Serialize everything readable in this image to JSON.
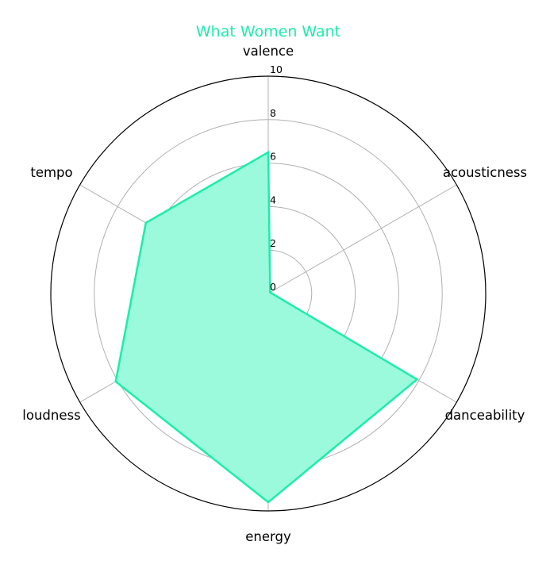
{
  "chart_data": {
    "type": "radar",
    "title": "What Women Want",
    "categories": [
      "valence",
      "acousticness",
      "danceability",
      "energy",
      "loudness",
      "tempo"
    ],
    "series": [
      {
        "values": [
          6.5,
          0.1,
          7.9,
          9.6,
          8.1,
          6.5
        ]
      }
    ],
    "rlim": [
      0,
      10
    ],
    "rticks": [
      "0",
      "2",
      "4",
      "6",
      "8",
      "10"
    ],
    "grid": true,
    "colors": {
      "series": "#1aeea8",
      "fill": "#9cfadc",
      "title": "#1aeea8",
      "grid": "#b0b0b0",
      "frame": "#000000"
    }
  }
}
